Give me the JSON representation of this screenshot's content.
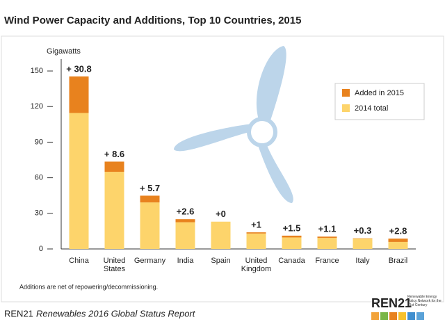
{
  "chart_data": {
    "type": "stacked-bar",
    "title": "Wind Power Capacity and Additions, Top 10 Countries, 2015",
    "y_label": "Gigawatts",
    "categories": [
      "China",
      "United States",
      "Germany",
      "India",
      "Spain",
      "United Kingdom",
      "Canada",
      "France",
      "Italy",
      "Brazil"
    ],
    "series": [
      {
        "name": "Added in 2015",
        "color": "#e8821e",
        "values": [
          30.8,
          8.6,
          5.7,
          2.6,
          0,
          1,
          1.5,
          1.1,
          0.3,
          2.8
        ],
        "value_labels": [
          "+ 30.8",
          "+ 8.6",
          "+ 5.7",
          "+2.6",
          "+0",
          "+1",
          "+1.5",
          "+1.1",
          "+0.3",
          "+2.8"
        ]
      },
      {
        "name": "2014 total",
        "color": "#fdd46b",
        "values": [
          114.6,
          65,
          39.2,
          22.5,
          23,
          13,
          9.7,
          9.3,
          8.7,
          5.9
        ]
      }
    ],
    "ylim": [
      0,
      160
    ],
    "yticks": [
      0,
      30,
      60,
      90,
      120,
      150
    ],
    "grid": false,
    "legend": "upper right",
    "footnote": "Additions are net of repowering/decommissioning.",
    "source": {
      "org": "REN21",
      "report": "Renewables 2016 Global Status Report"
    },
    "logo": {
      "name": "REN21",
      "tagline": "Renewable Energy Policy Network for the 21st Century"
    }
  }
}
